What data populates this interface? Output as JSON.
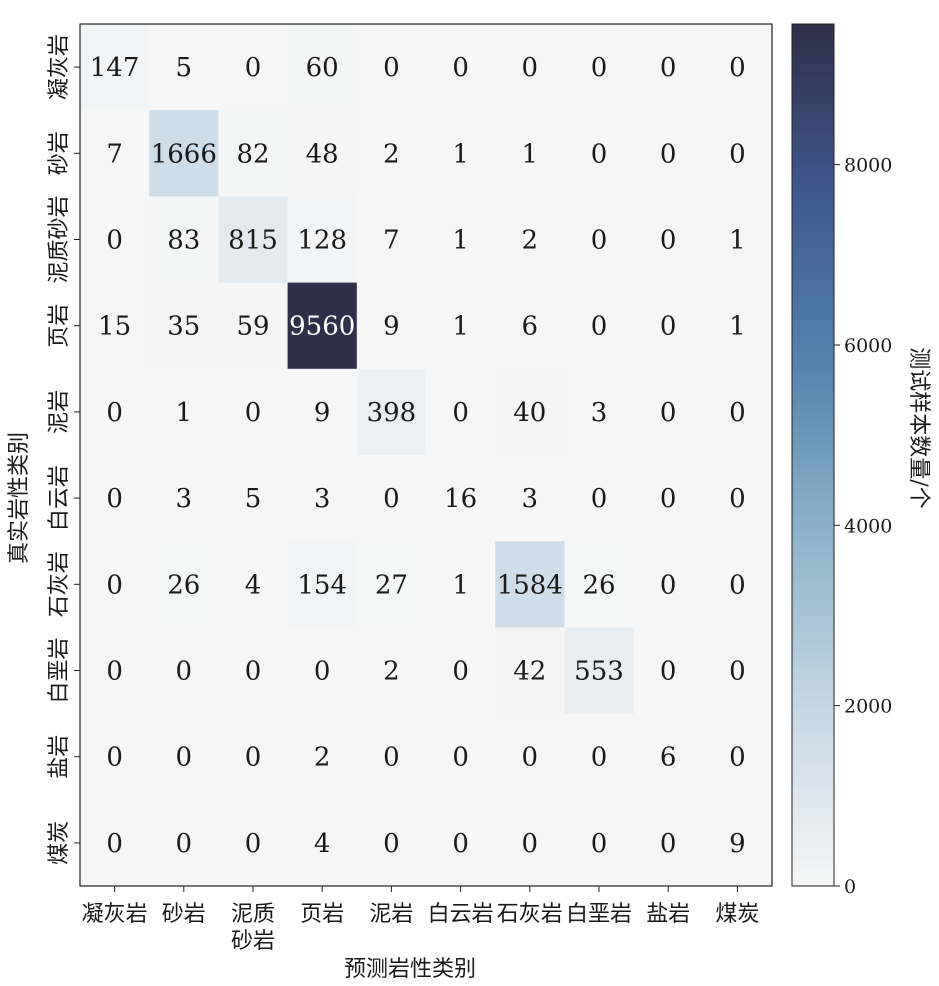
{
  "chart_data": {
    "type": "heatmap",
    "title": "",
    "xlabel": "预测岩性类别",
    "ylabel": "真实岩性类别",
    "x_categories": [
      [
        "凝灰岩"
      ],
      [
        "砂岩"
      ],
      [
        "泥质",
        "砂岩"
      ],
      [
        "页岩"
      ],
      [
        "泥岩"
      ],
      [
        "白云岩"
      ],
      [
        "石灰岩"
      ],
      [
        "白垩岩"
      ],
      [
        "盐岩"
      ],
      [
        "煤炭"
      ]
    ],
    "y_categories": [
      "凝灰岩",
      "砂岩",
      "泥质砂岩",
      "页岩",
      "泥岩",
      "白云岩",
      "石灰岩",
      "白垩岩",
      "盐岩",
      "煤炭"
    ],
    "values": [
      [
        147,
        5,
        0,
        60,
        0,
        0,
        0,
        0,
        0,
        0
      ],
      [
        7,
        1666,
        82,
        48,
        2,
        1,
        1,
        0,
        0,
        0
      ],
      [
        0,
        83,
        815,
        128,
        7,
        1,
        2,
        0,
        0,
        1
      ],
      [
        15,
        35,
        59,
        9560,
        9,
        1,
        6,
        0,
        0,
        1
      ],
      [
        0,
        1,
        0,
        9,
        398,
        0,
        40,
        3,
        0,
        0
      ],
      [
        0,
        3,
        5,
        3,
        0,
        16,
        3,
        0,
        0,
        0
      ],
      [
        0,
        26,
        4,
        154,
        27,
        1,
        1584,
        26,
        0,
        0
      ],
      [
        0,
        0,
        0,
        0,
        2,
        0,
        42,
        553,
        0,
        0
      ],
      [
        0,
        0,
        0,
        2,
        0,
        0,
        0,
        0,
        6,
        0
      ],
      [
        0,
        0,
        0,
        4,
        0,
        0,
        0,
        0,
        0,
        9
      ]
    ],
    "colorbar": {
      "label": "测试样本数量/个",
      "range": [
        0,
        9560
      ],
      "ticks": [
        0,
        2000,
        4000,
        6000,
        8000
      ],
      "colors": [
        "#f6f6f6",
        "#c6d8e6",
        "#8fb5cc",
        "#5585ad",
        "#3e5a8e",
        "#2f2f4a"
      ]
    }
  }
}
